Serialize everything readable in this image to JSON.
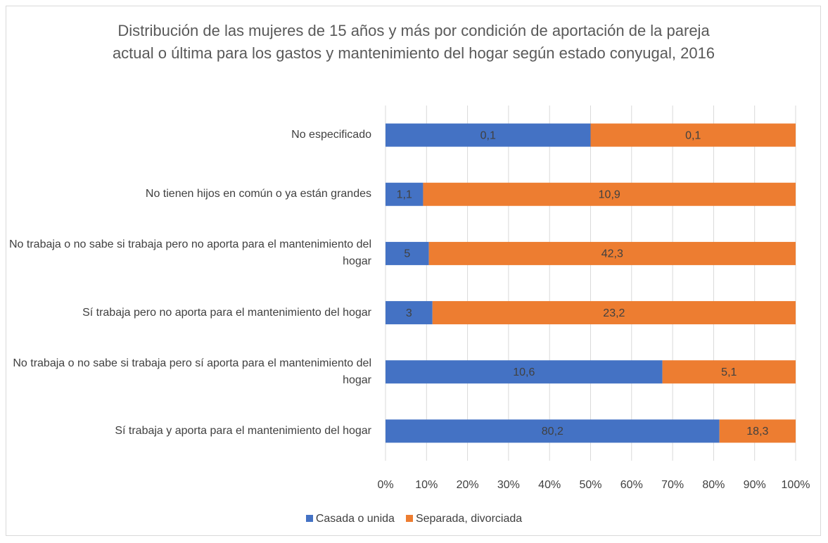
{
  "chart_data": {
    "type": "bar",
    "orientation": "horizontal",
    "stacking": "percent",
    "title": "Distribución de las mujeres de 15 años y más por condición de aportación de la pareja actual o última para los gastos y mantenimiento del hogar según estado conyugal, 2016",
    "categories": [
      "No especificado",
      "No tienen hijos en común o ya están grandes",
      "No trabaja o no sabe si trabaja pero no aporta para el mantenimiento del hogar",
      "Sí trabaja pero no aporta para el mantenimiento del hogar",
      "No trabaja o no sabe si trabaja pero sí aporta para el mantenimiento del hogar",
      "Sí trabaja y aporta para el mantenimiento del hogar"
    ],
    "series": [
      {
        "name": "Casada o unida",
        "color": "#4472c4",
        "values": [
          0.1,
          1.1,
          5,
          3,
          10.6,
          80.2
        ],
        "value_labels": [
          "0,1",
          "1,1",
          "5",
          "3",
          "10,6",
          "80,2"
        ]
      },
      {
        "name": "Separada, divorciada",
        "color": "#ed7d31",
        "values": [
          0.1,
          10.9,
          42.3,
          23.2,
          5.1,
          18.3
        ],
        "value_labels": [
          "0,1",
          "10,9",
          "42,3",
          "23,2",
          "5,1",
          "18,3"
        ]
      }
    ],
    "xlim": [
      0,
      100
    ],
    "xticks": [
      {
        "value": 0,
        "label": "0%"
      },
      {
        "value": 10,
        "label": "10%"
      },
      {
        "value": 20,
        "label": "20%"
      },
      {
        "value": 30,
        "label": "30%"
      },
      {
        "value": 40,
        "label": "40%"
      },
      {
        "value": 50,
        "label": "50%"
      },
      {
        "value": 60,
        "label": "60%"
      },
      {
        "value": 70,
        "label": "70%"
      },
      {
        "value": 80,
        "label": "80%"
      },
      {
        "value": 90,
        "label": "90%"
      },
      {
        "value": 100,
        "label": "100%"
      }
    ],
    "grid": true,
    "legend": "bottom"
  }
}
